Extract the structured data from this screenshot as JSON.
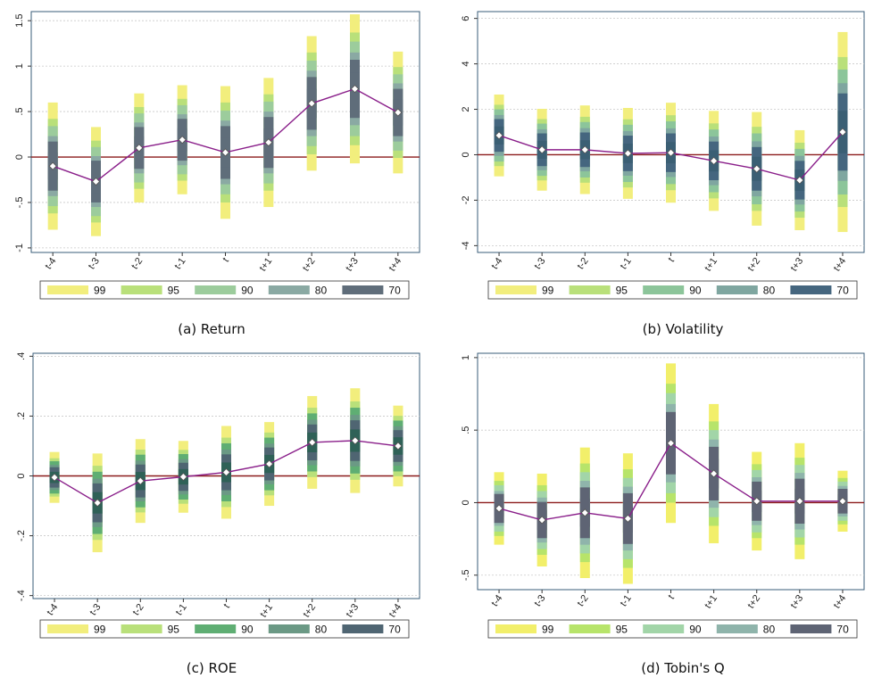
{
  "chart_data": [
    {
      "type": "line",
      "panel_id": "a",
      "title": "(a) Return",
      "xlabel": "",
      "ylabel": "",
      "categories": [
        "t-4",
        "t-3",
        "t-2",
        "t-1",
        "t",
        "t+1",
        "t+2",
        "t+3",
        "t+4"
      ],
      "ylim": [
        -1.05,
        1.6
      ],
      "yticks": [
        -1,
        -0.5,
        0,
        0.5,
        1,
        1.5
      ],
      "ytick_labels": [
        "-1",
        "-.5",
        "0",
        ".5",
        "1",
        "1.5"
      ],
      "series": [
        {
          "name": "point estimate",
          "values": [
            -0.1,
            -0.27,
            0.1,
            0.19,
            0.05,
            0.16,
            0.59,
            0.75,
            0.49
          ]
        }
      ],
      "confidence_bands": {
        "levels": [
          "99",
          "95",
          "90",
          "80",
          "70"
        ],
        "colors": [
          "#f2ee7d",
          "#b9e07a",
          "#9ccc9c",
          "#8aa9a3",
          "#5f6d7a"
        ],
        "inner_fill": "#5f6d7a",
        "half_widths": [
          [
            0.7,
            0.52,
            0.44,
            0.33,
            0.27
          ],
          [
            0.6,
            0.45,
            0.38,
            0.28,
            0.23
          ],
          [
            0.6,
            0.45,
            0.38,
            0.28,
            0.23
          ],
          [
            0.6,
            0.45,
            0.38,
            0.28,
            0.23
          ],
          [
            0.73,
            0.55,
            0.46,
            0.35,
            0.29
          ],
          [
            0.71,
            0.53,
            0.45,
            0.34,
            0.28
          ],
          [
            0.74,
            0.56,
            0.47,
            0.36,
            0.29
          ],
          [
            0.82,
            0.62,
            0.52,
            0.4,
            0.32
          ],
          [
            0.67,
            0.5,
            0.42,
            0.32,
            0.26
          ]
        ]
      },
      "legend": [
        "99",
        "95",
        "90",
        "80",
        "70"
      ],
      "line_color": "#8a1f8a",
      "zero_line_color": "#8b1a1a",
      "gridlines": true
    },
    {
      "type": "line",
      "panel_id": "b",
      "title": "(b) Volatility",
      "xlabel": "",
      "ylabel": "",
      "categories": [
        "t-4",
        "t-3",
        "t-2",
        "t-1",
        "t",
        "t+1",
        "t+2",
        "t+3",
        "t+4"
      ],
      "ylim": [
        -4.3,
        6.3
      ],
      "yticks": [
        -4,
        -2,
        0,
        2,
        4,
        6
      ],
      "ytick_labels": [
        "-4",
        "-2",
        "0",
        "2",
        "4",
        "6"
      ],
      "series": [
        {
          "name": "point estimate",
          "values": [
            0.85,
            0.22,
            0.22,
            0.06,
            0.09,
            -0.27,
            -0.62,
            -1.12,
            1.0
          ]
        }
      ],
      "confidence_bands": {
        "levels": [
          "99",
          "95",
          "90",
          "80",
          "70"
        ],
        "colors": [
          "#f2ee7d",
          "#b9e07a",
          "#8cc59a",
          "#7fa6a0",
          "#45667f"
        ],
        "inner_fill": "#3b5f74",
        "half_widths": [
          [
            1.8,
            1.35,
            1.15,
            0.9,
            0.72
          ],
          [
            1.8,
            1.35,
            1.15,
            0.9,
            0.72
          ],
          [
            1.95,
            1.45,
            1.22,
            0.95,
            0.76
          ],
          [
            2.0,
            1.5,
            1.26,
            0.98,
            0.78
          ],
          [
            2.2,
            1.65,
            1.38,
            1.07,
            0.85
          ],
          [
            2.2,
            1.65,
            1.38,
            1.07,
            0.85
          ],
          [
            2.5,
            1.85,
            1.56,
            1.21,
            0.96
          ],
          [
            2.2,
            1.65,
            1.38,
            1.07,
            0.85
          ],
          [
            4.4,
            3.3,
            2.75,
            2.15,
            1.7
          ]
        ]
      },
      "legend": [
        "99",
        "95",
        "90",
        "80",
        "70"
      ],
      "line_color": "#8a1f8a",
      "zero_line_color": "#8b1a1a",
      "gridlines": true
    },
    {
      "type": "line",
      "panel_id": "c",
      "title": "(c) ROE",
      "xlabel": "",
      "ylabel": "",
      "categories": [
        "t-4",
        "t-3",
        "t-2",
        "t-1",
        "t",
        "t+1",
        "t+2",
        "t+3",
        "t+4"
      ],
      "ylim": [
        -0.41,
        0.41
      ],
      "yticks": [
        -0.4,
        -0.2,
        0,
        0.2,
        0.4
      ],
      "ytick_labels": [
        "-.4",
        "-.2",
        "0",
        ".2",
        ".4"
      ],
      "series": [
        {
          "name": "point estimate",
          "values": [
            -0.005,
            -0.09,
            -0.017,
            -0.003,
            0.012,
            0.04,
            0.112,
            0.118,
            0.1
          ]
        }
      ],
      "confidence_bands": {
        "levels": [
          "99",
          "95",
          "90",
          "80",
          "70"
        ],
        "colors": [
          "#f2ee7d",
          "#b9e07a",
          "#5fae73",
          "#6b9985",
          "#4f6572"
        ],
        "inner_fill": "#2f6157",
        "half_widths": [
          [
            0.085,
            0.064,
            0.054,
            0.042,
            0.034
          ],
          [
            0.165,
            0.124,
            0.104,
            0.081,
            0.065
          ],
          [
            0.14,
            0.105,
            0.088,
            0.068,
            0.055
          ],
          [
            0.12,
            0.09,
            0.076,
            0.059,
            0.047
          ],
          [
            0.155,
            0.116,
            0.097,
            0.076,
            0.06
          ],
          [
            0.14,
            0.105,
            0.088,
            0.068,
            0.055
          ],
          [
            0.155,
            0.116,
            0.097,
            0.076,
            0.06
          ],
          [
            0.175,
            0.131,
            0.11,
            0.086,
            0.068
          ],
          [
            0.135,
            0.101,
            0.085,
            0.066,
            0.053
          ]
        ]
      },
      "legend": [
        "99",
        "95",
        "90",
        "80",
        "70"
      ],
      "line_color": "#8a1f8a",
      "zero_line_color": "#8b1a1a",
      "gridlines": true
    },
    {
      "type": "line",
      "panel_id": "d",
      "title": "(d) Tobin's Q",
      "xlabel": "",
      "ylabel": "",
      "categories": [
        "t-4",
        "t-3",
        "t-2",
        "t-1",
        "t",
        "t+1",
        "t+2",
        "t+3",
        "t+4"
      ],
      "ylim": [
        -0.6,
        1.03
      ],
      "yticks": [
        -0.5,
        0,
        0.5,
        1
      ],
      "ytick_labels": [
        "-.5",
        "0",
        ".5",
        "1"
      ],
      "series": [
        {
          "name": "point estimate",
          "values": [
            -0.04,
            -0.12,
            -0.07,
            -0.11,
            0.41,
            0.2,
            0.01,
            0.01,
            0.01
          ]
        }
      ],
      "confidence_bands": {
        "levels": [
          "99",
          "95",
          "90",
          "80",
          "70"
        ],
        "colors": [
          "#f2ef6a",
          "#b7e46a",
          "#a2d5a8",
          "#8fb4ab",
          "#5e6474"
        ],
        "inner_fill": "#5e6474",
        "half_widths": [
          [
            0.25,
            0.19,
            0.16,
            0.12,
            0.1
          ],
          [
            0.32,
            0.24,
            0.2,
            0.155,
            0.125
          ],
          [
            0.45,
            0.34,
            0.28,
            0.22,
            0.175
          ],
          [
            0.45,
            0.34,
            0.28,
            0.22,
            0.175
          ],
          [
            0.55,
            0.41,
            0.345,
            0.27,
            0.215
          ],
          [
            0.48,
            0.36,
            0.3,
            0.235,
            0.185
          ],
          [
            0.34,
            0.255,
            0.215,
            0.165,
            0.135
          ],
          [
            0.4,
            0.3,
            0.25,
            0.195,
            0.155
          ],
          [
            0.21,
            0.16,
            0.135,
            0.105,
            0.085
          ]
        ]
      },
      "legend": [
        "99",
        "95",
        "90",
        "80",
        "70"
      ],
      "line_color": "#8a1f8a",
      "zero_line_color": "#8b1a1a",
      "gridlines": true
    }
  ]
}
